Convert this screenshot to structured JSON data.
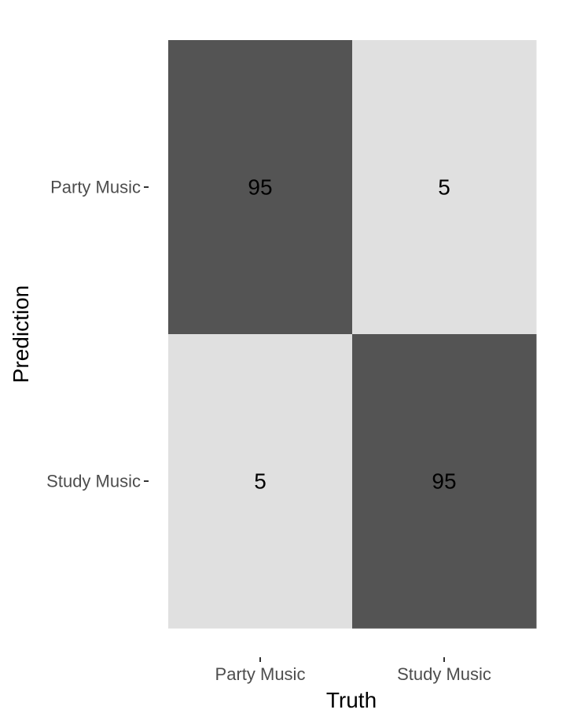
{
  "chart_data": {
    "type": "heatmap",
    "title": "",
    "xlabel": "Truth",
    "ylabel": "Prediction",
    "x_categories": [
      "Party Music",
      "Study Music"
    ],
    "y_categories": [
      "Party Music",
      "Study Music"
    ],
    "cells": [
      {
        "truth": "Party Music",
        "prediction": "Party Music",
        "value": 95
      },
      {
        "truth": "Study Music",
        "prediction": "Party Music",
        "value": 5
      },
      {
        "truth": "Party Music",
        "prediction": "Study Music",
        "value": 5
      },
      {
        "truth": "Study Music",
        "prediction": "Study Music",
        "value": 95
      }
    ],
    "colors": {
      "high": "#545454",
      "low": "#e0e0e0",
      "text": "#000000",
      "tick_text": "#4d4d4d",
      "tick_mark": "#333333"
    },
    "grid": false,
    "legend": "none"
  }
}
